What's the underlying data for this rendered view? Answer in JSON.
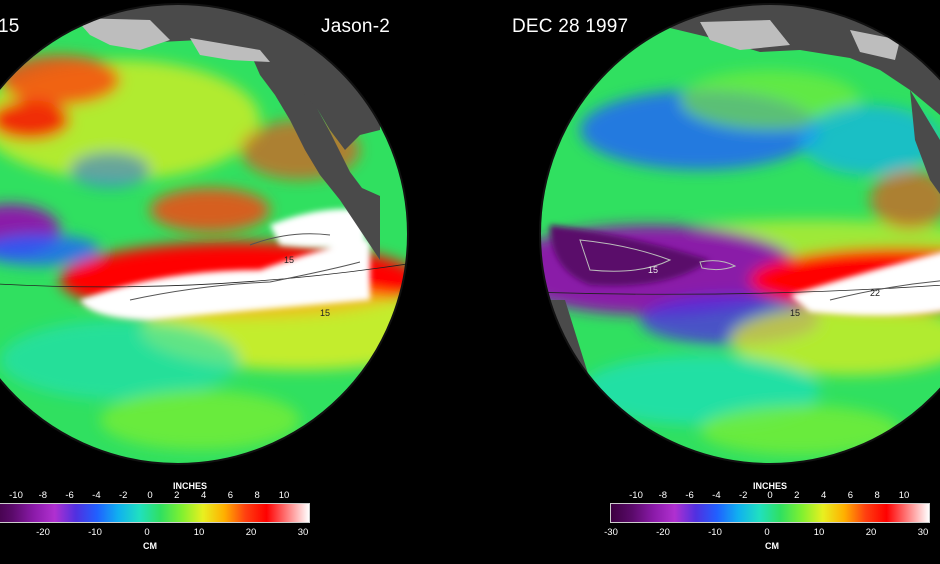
{
  "left_panel": {
    "date_fragment": "15",
    "satellite": "Jason-2",
    "contour_labels": [
      "15",
      "15"
    ]
  },
  "right_panel": {
    "date": "DEC 28  1997",
    "contour_labels": [
      "15",
      "22",
      "15"
    ]
  },
  "colorbar": {
    "inches_label": "INCHES",
    "cm_label": "CM",
    "inches_ticks": [
      "-10",
      "-8",
      "-6",
      "-4",
      "-2",
      "0",
      "2",
      "4",
      "6",
      "8",
      "10"
    ],
    "cm_ticks_left": [
      "-20",
      "-10",
      "0",
      "10",
      "20",
      "30"
    ],
    "cm_ticks_right": [
      "-30",
      "-20",
      "-10",
      "0",
      "10",
      "20",
      "30"
    ],
    "colors": [
      "#3c0040",
      "#5a0a6a",
      "#8a1aa8",
      "#b030d0",
      "#5030e0",
      "#2060ff",
      "#10b0f0",
      "#20e0c0",
      "#30e060",
      "#80f030",
      "#e8f020",
      "#ffb000",
      "#ff4010",
      "#ff0000",
      "#ff8080",
      "#ffffff"
    ]
  }
}
